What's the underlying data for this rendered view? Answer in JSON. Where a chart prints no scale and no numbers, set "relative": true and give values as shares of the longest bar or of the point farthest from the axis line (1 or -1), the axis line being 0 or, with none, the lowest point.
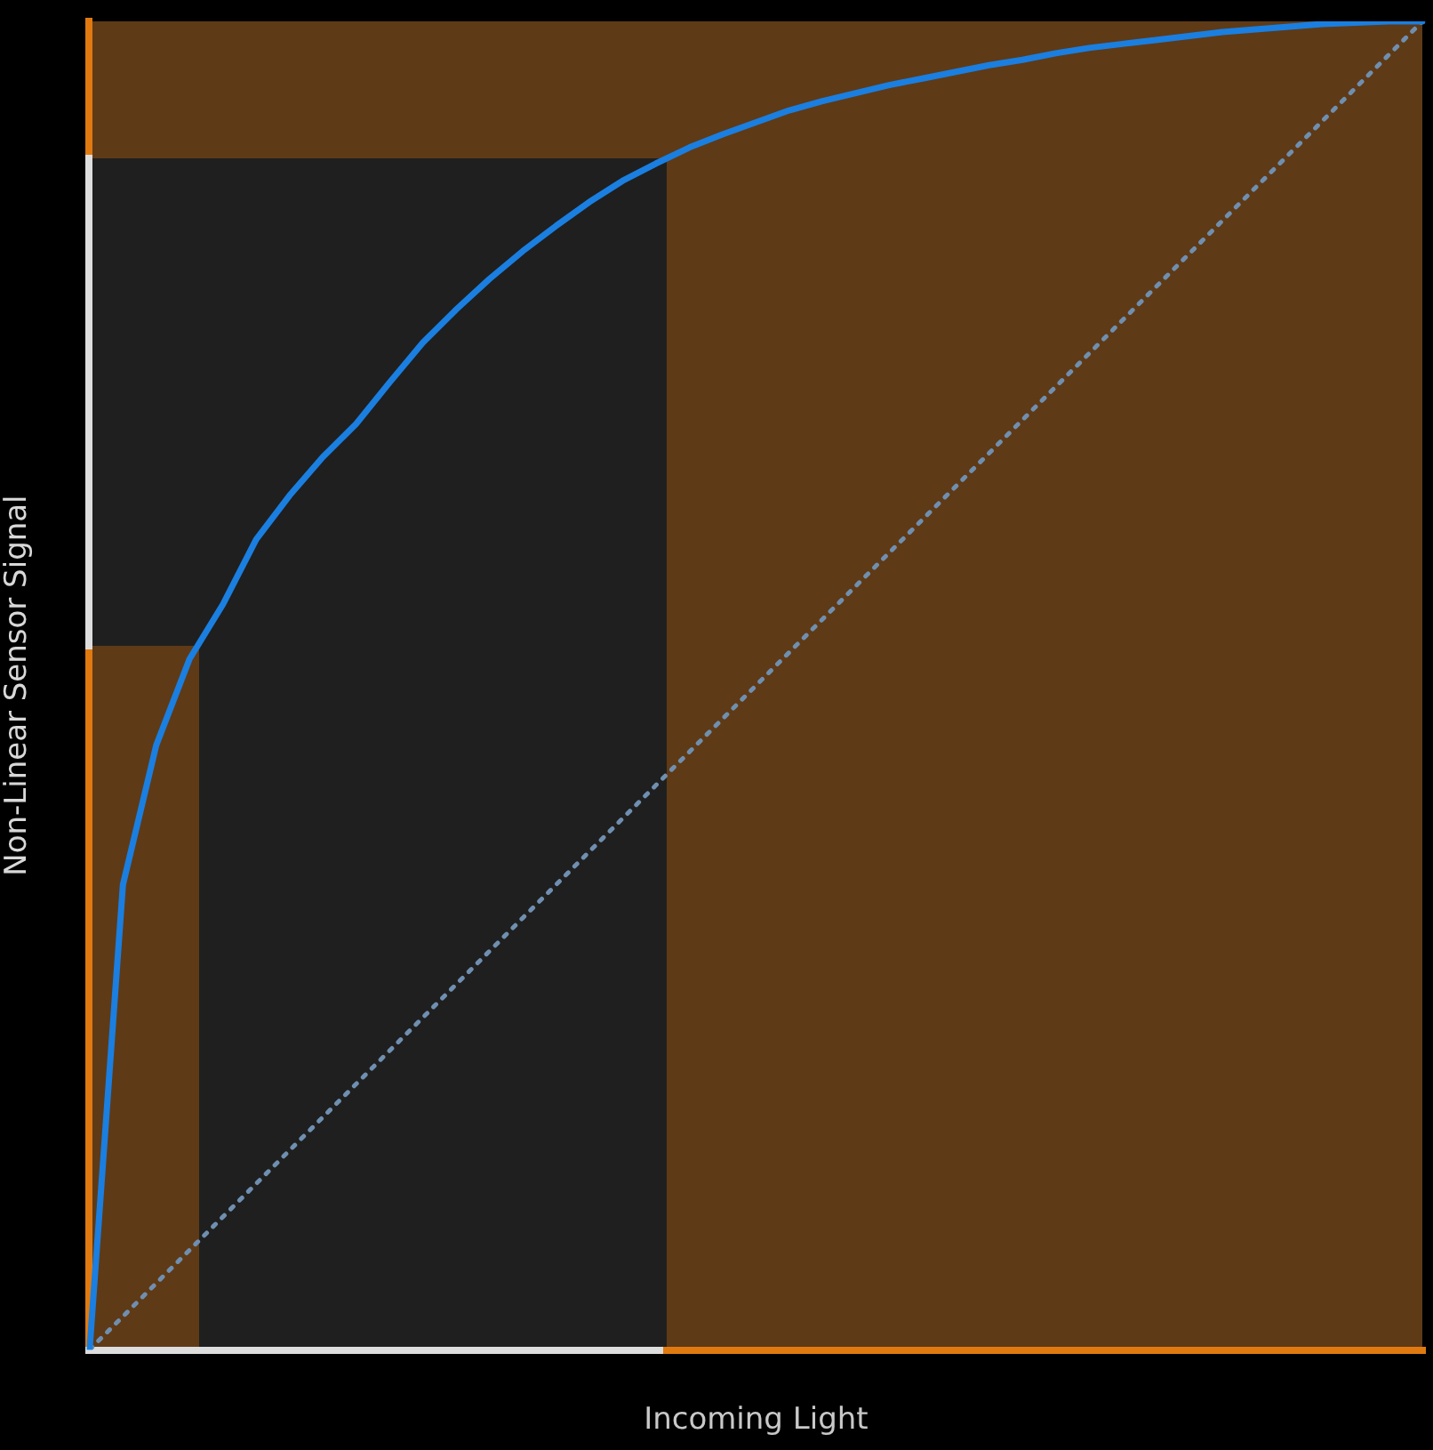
{
  "chart_data": {
    "type": "line",
    "relative": true,
    "xlabel": "Incoming Light",
    "ylabel": "Non-Linear Sensor Signal",
    "tick_labels": false,
    "grid": false,
    "legend": false,
    "marker": "none",
    "categories": [
      null,
      null,
      null,
      null,
      null,
      null,
      null,
      null,
      null,
      null,
      null,
      null,
      null,
      null,
      null,
      null,
      null,
      null,
      null,
      null,
      null,
      null,
      null,
      null,
      null,
      null,
      null,
      null,
      null,
      null,
      null,
      null,
      null,
      null,
      null,
      null,
      null,
      null,
      null,
      null,
      null
    ],
    "series": [
      {
        "color": "#1a7fe0",
        "line_style": "solid",
        "values": [
          0,
          0.35,
          0.455,
          0.52,
          0.561,
          0.61,
          0.643,
          0.672,
          0.697,
          0.728,
          0.758,
          0.783,
          0.806,
          0.827,
          0.846,
          0.864,
          0.88,
          0.893,
          0.905,
          0.915,
          0.924,
          0.933,
          0.94,
          0.946,
          0.952,
          0.957,
          0.962,
          0.967,
          0.971,
          0.976,
          0.98,
          0.983,
          0.986,
          0.989,
          0.992,
          0.994,
          0.996,
          0.998,
          0.999,
          1,
          1
        ]
      },
      {
        "color": "#6f8fb0",
        "line_style": "dotted",
        "values": [
          0,
          0.025,
          0.05,
          0.075,
          0.1,
          0.125,
          0.15,
          0.175,
          0.2,
          0.225,
          0.25,
          0.275,
          0.3,
          0.325,
          0.35,
          0.375,
          0.4,
          0.425,
          0.45,
          0.475,
          0.5,
          0.525,
          0.55,
          0.575,
          0.6,
          0.625,
          0.65,
          0.675,
          0.7,
          0.725,
          0.75,
          0.775,
          0.8,
          0.825,
          0.85,
          0.875,
          0.9,
          0.925,
          0.95,
          0.975,
          1
        ]
      }
    ]
  }
}
